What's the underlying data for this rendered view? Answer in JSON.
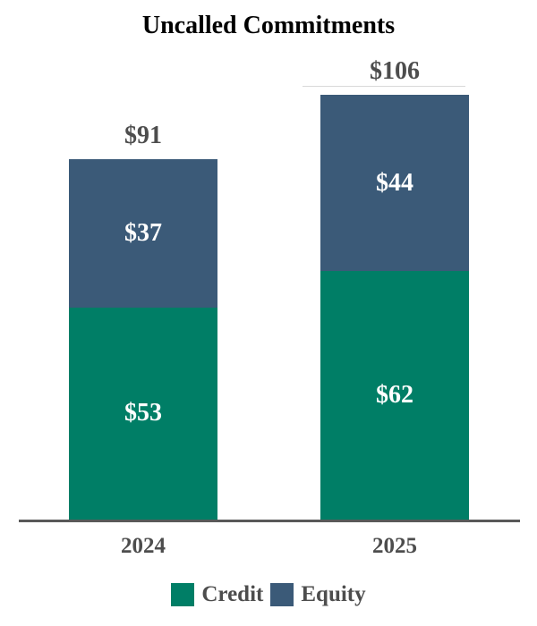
{
  "chart_data": {
    "type": "bar",
    "subtype": "stacked-column",
    "title": "Uncalled Commitments",
    "categories": [
      "2024",
      "2025"
    ],
    "series": [
      {
        "name": "Credit",
        "color": "#007E66",
        "values": [
          53,
          62
        ],
        "labels": [
          "$53",
          "$62"
        ]
      },
      {
        "name": "Equity",
        "color": "#3B5A78",
        "values": [
          37,
          44
        ],
        "labels": [
          "$37",
          "$44"
        ]
      }
    ],
    "totals": [
      91,
      106
    ],
    "total_labels": [
      "$91",
      "$106"
    ],
    "value_prefix": "$",
    "legend": {
      "position": "bottom",
      "entries": [
        "Credit",
        "Equity"
      ]
    },
    "grid": false,
    "y_axis_visible": false,
    "x_baseline_visible": true,
    "ylim": [
      0,
      110
    ]
  },
  "colors": {
    "credit": "#007E66",
    "equity": "#3B5A78",
    "title_text": "#000000",
    "outside_label_text": "#4D4D4D",
    "inside_label_text": "#FFFFFF",
    "axis_line": "#595959",
    "background": "#FFFFFF"
  }
}
